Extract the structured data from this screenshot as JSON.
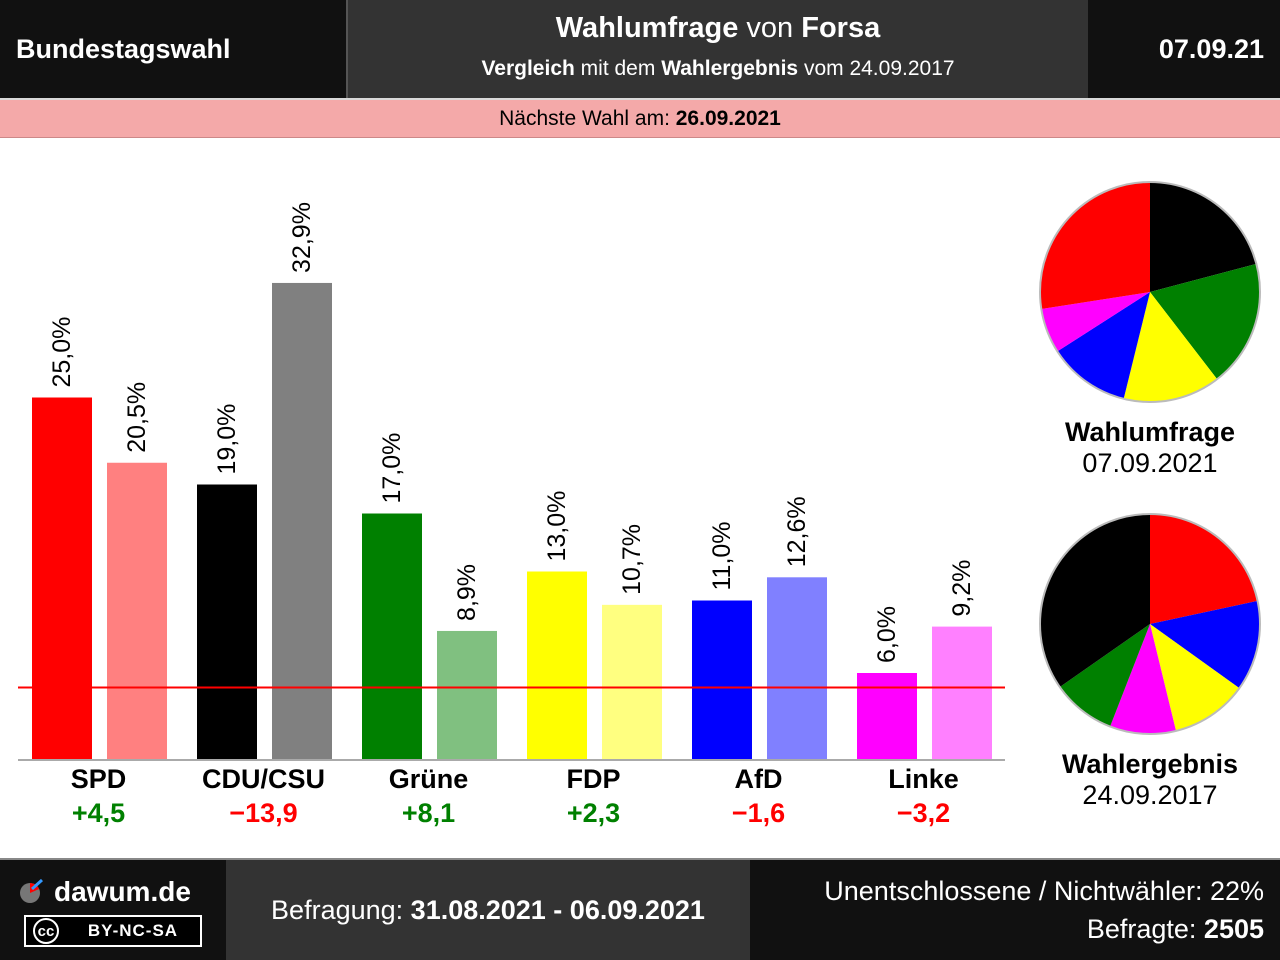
{
  "header": {
    "left_title": "Bundestagswahl",
    "mid_line1_a": "Wahlumfrage",
    "mid_line1_b": " von ",
    "mid_line1_c": "Forsa",
    "mid_line2_a": "Vergleich",
    "mid_line2_b": " mit dem ",
    "mid_line2_c": "Wahlergebnis",
    "mid_line2_d": " vom 24.09.2017",
    "right_date": "07.09.21"
  },
  "next_election": {
    "label": "Nächste Wahl am: ",
    "date": "26.09.2021"
  },
  "chart_data": {
    "type": "bar",
    "categories": [
      "SPD",
      "CDU/CSU",
      "Grüne",
      "FDP",
      "AfD",
      "Linke"
    ],
    "series": [
      {
        "values": [
          25.0,
          19.0,
          17.0,
          13.0,
          11.0,
          6.0
        ],
        "labels": [
          "25,0%",
          "19,0%",
          "17,0%",
          "13,0%",
          "11,0%",
          "6,0%"
        ],
        "colors": [
          "#ff0000",
          "#000000",
          "#008000",
          "#ffff00",
          "#0000ff",
          "#ff00ff"
        ]
      },
      {
        "values": [
          20.5,
          32.9,
          8.9,
          10.7,
          12.6,
          9.2
        ],
        "labels": [
          "20,5%",
          "32,9%",
          "8,9%",
          "10,7%",
          "12,6%",
          "9,2%"
        ],
        "colors": [
          "#ff8080",
          "#808080",
          "#80c080",
          "#ffff80",
          "#8080ff",
          "#ff80ff"
        ]
      }
    ],
    "differences": [
      "+4,5",
      "−13,9",
      "+8,1",
      "+2,3",
      "−1,6",
      "−3,2"
    ],
    "difference_colors": [
      "#008000",
      "#ff0000",
      "#008000",
      "#008000",
      "#ff0000",
      "#ff0000"
    ],
    "threshold": 5,
    "threshold_color": "#ff0000",
    "ylim": [
      0,
      35
    ]
  },
  "pies": {
    "survey": {
      "title": "Wahlumfrage",
      "date": "07.09.2021",
      "slices": [
        {
          "value": 19.0,
          "color": "#000000"
        },
        {
          "value": 17.0,
          "color": "#008000"
        },
        {
          "value": 13.0,
          "color": "#ffff00"
        },
        {
          "value": 11.0,
          "color": "#0000ff"
        },
        {
          "value": 6.0,
          "color": "#ff00ff"
        },
        {
          "value": 25.0,
          "color": "#ff0000"
        }
      ]
    },
    "result": {
      "title": "Wahlergebnis",
      "date": "24.09.2017",
      "slices": [
        {
          "value": 20.5,
          "color": "#ff0000"
        },
        {
          "value": 12.6,
          "color": "#0000ff"
        },
        {
          "value": 10.7,
          "color": "#ffff00"
        },
        {
          "value": 9.2,
          "color": "#ff00ff"
        },
        {
          "value": 8.9,
          "color": "#008000"
        },
        {
          "value": 32.9,
          "color": "#000000"
        }
      ]
    }
  },
  "footer": {
    "site": "dawum.de",
    "license_cc": "cc",
    "license": "BY-NC-SA",
    "period_label": "Befragung: ",
    "period": "31.08.2021 - 06.09.2021",
    "undecided": "Unentschlossene / Nichtwähler: 22%",
    "respondents_label": "Befragte: ",
    "respondents": "2505"
  }
}
